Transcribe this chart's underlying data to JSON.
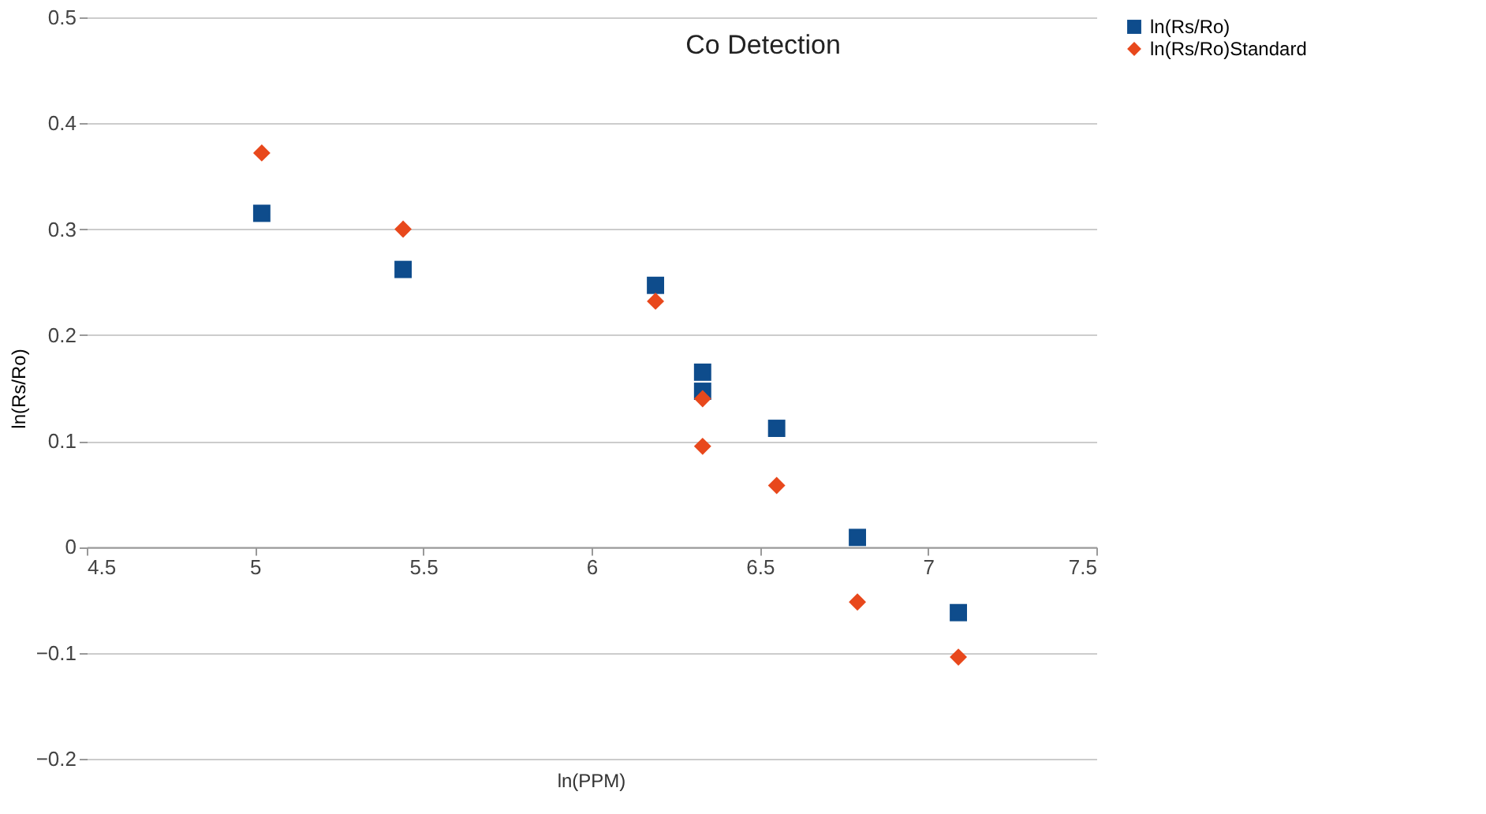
{
  "chart_data": {
    "type": "scatter",
    "title": "Co Detection",
    "xlabel": "ln(PPM)",
    "ylabel": "ln(Rs/Ro)",
    "x": [
      5.02,
      5.44,
      6.19,
      6.33,
      6.33,
      6.55,
      6.79,
      7.09
    ],
    "series": [
      {
        "name": "ln(Rs/Ro)",
        "color": "#0e4c8c",
        "marker": "square",
        "values": [
          0.315,
          0.262,
          0.247,
          0.165,
          0.147,
          0.112,
          0.009,
          -0.062
        ]
      },
      {
        "name": "ln(Rs/Ro)Standard",
        "color": "#e8481c",
        "marker": "diamond",
        "values": [
          0.372,
          0.3,
          0.232,
          0.14,
          0.095,
          0.058,
          -0.052,
          -0.104
        ]
      }
    ],
    "xlim": [
      4.5,
      7.5
    ],
    "xticks": [
      4.5,
      5,
      5.5,
      6,
      6.5,
      7,
      7.5
    ],
    "ylim": [
      -0.2,
      0.5
    ],
    "yticks": [
      -0.2,
      -0.1,
      0,
      0.1,
      0.2,
      0.3,
      0.4,
      0.5
    ],
    "grid": "y",
    "legend": "right"
  }
}
